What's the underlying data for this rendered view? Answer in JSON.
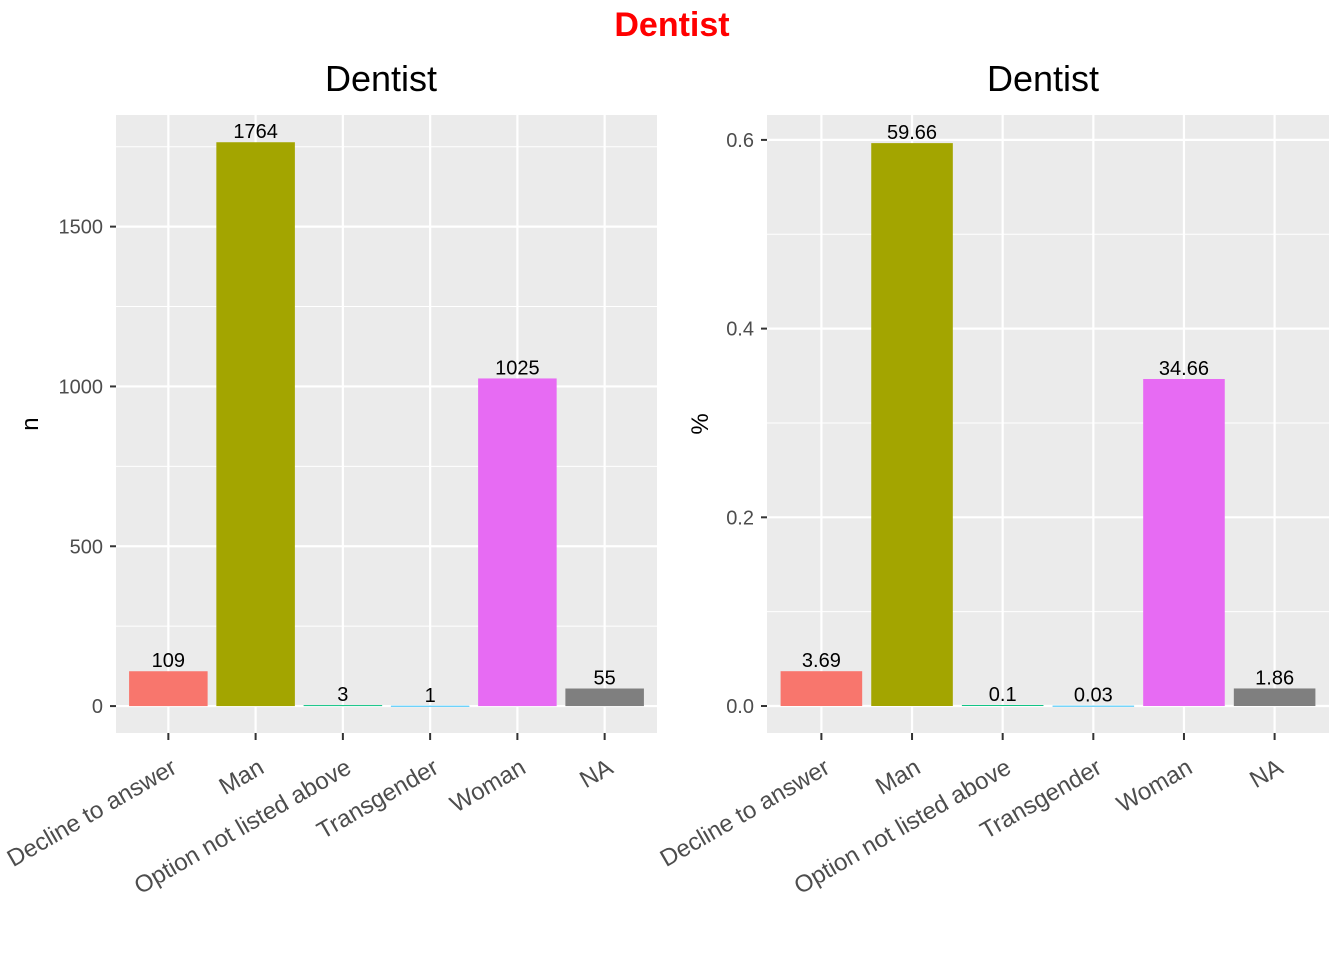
{
  "figure": {
    "title": "Dentist",
    "title_color": "#FF0000",
    "panel_background": "#EBEBEB",
    "grid_color": "#FFFFFF"
  },
  "chart_data": [
    {
      "type": "bar",
      "title": "Dentist",
      "xlabel": "",
      "ylabel": "n",
      "categories": [
        "Decline to answer",
        "Man",
        "Option not listed above",
        "Transgender",
        "Woman",
        "NA"
      ],
      "values": [
        109,
        1764,
        3,
        1,
        1025,
        55
      ],
      "data_labels": [
        "109",
        "1764",
        "3",
        "1",
        "1025",
        "55"
      ],
      "colors": [
        "#F8766D",
        "#A3A500",
        "#00BF7D",
        "#00B0F6",
        "#E76BF3",
        "#7F7F7F"
      ],
      "ylim": [
        -84.2,
        1849.2
      ],
      "yticks": [
        0,
        500,
        1000,
        1500
      ],
      "ytick_labels": [
        "0",
        "500",
        "1000",
        "1500"
      ],
      "grid": true,
      "legend": "none"
    },
    {
      "type": "bar",
      "title": "Dentist",
      "xlabel": "",
      "ylabel": "%",
      "categories": [
        "Decline to answer",
        "Man",
        "Option not listed above",
        "Transgender",
        "Woman",
        "NA"
      ],
      "values": [
        0.0369,
        0.5966,
        0.001,
        0.0003,
        0.3466,
        0.0186
      ],
      "data_labels": [
        "3.69",
        "59.66",
        "0.1",
        "0.03",
        "34.66",
        "1.86"
      ],
      "colors": [
        "#F8766D",
        "#A3A500",
        "#00BF7D",
        "#00B0F6",
        "#E76BF3",
        "#7F7F7F"
      ],
      "ylim": [
        -0.0286,
        0.6264
      ],
      "yticks": [
        0.0,
        0.2,
        0.4,
        0.6
      ],
      "ytick_labels": [
        "0.0",
        "0.2",
        "0.4",
        "0.6"
      ],
      "grid": true,
      "legend": "none"
    }
  ]
}
